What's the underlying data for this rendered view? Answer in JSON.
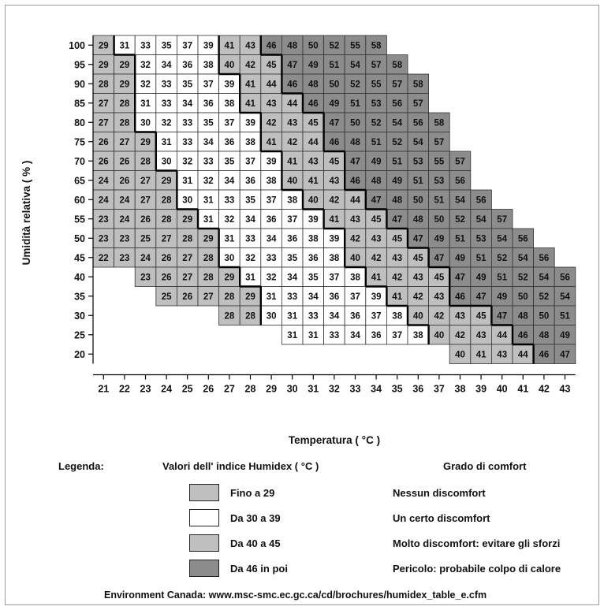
{
  "chart_data": {
    "type": "heatmap",
    "title": "",
    "xlabel": "Temperatura ( °C )",
    "ylabel": "Umidità relativa ( % )",
    "x": [
      21,
      22,
      23,
      24,
      25,
      26,
      27,
      28,
      29,
      30,
      31,
      32,
      33,
      34,
      35,
      36,
      37,
      38,
      39,
      40,
      41,
      42,
      43
    ],
    "y": [
      100,
      95,
      90,
      85,
      80,
      75,
      70,
      65,
      60,
      55,
      50,
      45,
      40,
      35,
      30,
      25,
      20
    ],
    "rows": [
      {
        "rh": 100,
        "start": 21,
        "values": [
          29,
          31,
          33,
          35,
          37,
          39,
          41,
          43,
          46,
          48,
          50,
          52,
          55,
          58
        ]
      },
      {
        "rh": 95,
        "start": 21,
        "values": [
          29,
          29,
          32,
          34,
          36,
          38,
          40,
          42,
          45,
          47,
          49,
          51,
          54,
          57,
          58
        ]
      },
      {
        "rh": 90,
        "start": 21,
        "values": [
          28,
          29,
          32,
          33,
          35,
          37,
          39,
          41,
          44,
          46,
          48,
          50,
          52,
          55,
          57,
          58
        ]
      },
      {
        "rh": 85,
        "start": 21,
        "values": [
          27,
          28,
          31,
          33,
          34,
          36,
          38,
          41,
          43,
          44,
          46,
          49,
          51,
          53,
          56,
          57
        ]
      },
      {
        "rh": 80,
        "start": 21,
        "values": [
          27,
          28,
          30,
          32,
          33,
          35,
          37,
          39,
          42,
          43,
          45,
          47,
          50,
          52,
          54,
          56,
          58
        ]
      },
      {
        "rh": 75,
        "start": 21,
        "values": [
          26,
          27,
          29,
          31,
          33,
          34,
          36,
          38,
          41,
          42,
          44,
          46,
          48,
          51,
          52,
          54,
          57
        ]
      },
      {
        "rh": 70,
        "start": 21,
        "values": [
          26,
          26,
          28,
          30,
          32,
          33,
          35,
          37,
          39,
          41,
          43,
          45,
          47,
          49,
          51,
          53,
          55,
          57
        ]
      },
      {
        "rh": 65,
        "start": 21,
        "values": [
          24,
          26,
          27,
          29,
          31,
          32,
          34,
          36,
          38,
          40,
          41,
          43,
          46,
          48,
          49,
          51,
          53,
          56
        ]
      },
      {
        "rh": 60,
        "start": 21,
        "values": [
          24,
          24,
          27,
          28,
          30,
          31,
          33,
          35,
          37,
          38,
          40,
          42,
          44,
          47,
          48,
          50,
          51,
          54,
          56
        ]
      },
      {
        "rh": 55,
        "start": 21,
        "values": [
          23,
          24,
          26,
          28,
          29,
          31,
          32,
          34,
          36,
          37,
          39,
          41,
          43,
          45,
          47,
          48,
          50,
          52,
          54,
          57
        ]
      },
      {
        "rh": 50,
        "start": 21,
        "values": [
          23,
          23,
          25,
          27,
          28,
          29,
          31,
          33,
          34,
          36,
          38,
          39,
          42,
          43,
          45,
          47,
          49,
          51,
          53,
          54,
          56
        ]
      },
      {
        "rh": 45,
        "start": 21,
        "values": [
          22,
          23,
          24,
          26,
          27,
          28,
          30,
          32,
          33,
          35,
          36,
          38,
          40,
          42,
          43,
          45,
          47,
          49,
          51,
          52,
          54,
          56
        ]
      },
      {
        "rh": 40,
        "start": 23,
        "values": [
          23,
          26,
          27,
          28,
          29,
          31,
          32,
          34,
          35,
          37,
          38,
          41,
          42,
          43,
          45,
          47,
          49,
          51,
          52,
          54,
          56
        ]
      },
      {
        "rh": 35,
        "start": 24,
        "values": [
          25,
          26,
          27,
          28,
          29,
          31,
          33,
          34,
          36,
          37,
          39,
          41,
          42,
          43,
          46,
          47,
          49,
          50,
          52,
          54
        ]
      },
      {
        "rh": 30,
        "start": 27,
        "values": [
          28,
          28,
          30,
          31,
          33,
          34,
          36,
          37,
          38,
          40,
          42,
          43,
          45,
          47,
          48,
          50,
          51
        ]
      },
      {
        "rh": 25,
        "start": 30,
        "values": [
          31,
          31,
          33,
          34,
          36,
          37,
          38,
          40,
          42,
          43,
          44,
          46,
          48,
          49
        ]
      },
      {
        "rh": 20,
        "start": 38,
        "values": [
          40,
          41,
          43,
          44,
          46,
          47
        ]
      }
    ],
    "color_bands": [
      {
        "min": null,
        "max": 29,
        "color": "#bfbfbf"
      },
      {
        "min": 30,
        "max": 39,
        "color": "#ffffff"
      },
      {
        "min": 40,
        "max": 45,
        "color": "#bfbfbf"
      },
      {
        "min": 46,
        "max": null,
        "color": "#8c8c8c"
      }
    ]
  },
  "legend": {
    "heading": "Legenda:",
    "values_header": "Valori dell' indice Humidex ( °C )",
    "comfort_header": "Grado di comfort",
    "items": [
      {
        "range": "Fino a 29",
        "comfort": "Nessun discomfort",
        "color": "#bfbfbf"
      },
      {
        "range": "Da 30 a 39",
        "comfort": "Un certo discomfort",
        "color": "#ffffff"
      },
      {
        "range": "Da 40 a 45",
        "comfort": "Molto discomfort: evitare gli sforzi",
        "color": "#bfbfbf"
      },
      {
        "range": "Da 46 in poi",
        "comfort": "Pericolo: probabile colpo di calore",
        "color": "#8c8c8c"
      }
    ]
  },
  "source": "Environment Canada: www.msc-smc.ec.gc.ca/cd/brochures/humidex_table_e.cfm"
}
